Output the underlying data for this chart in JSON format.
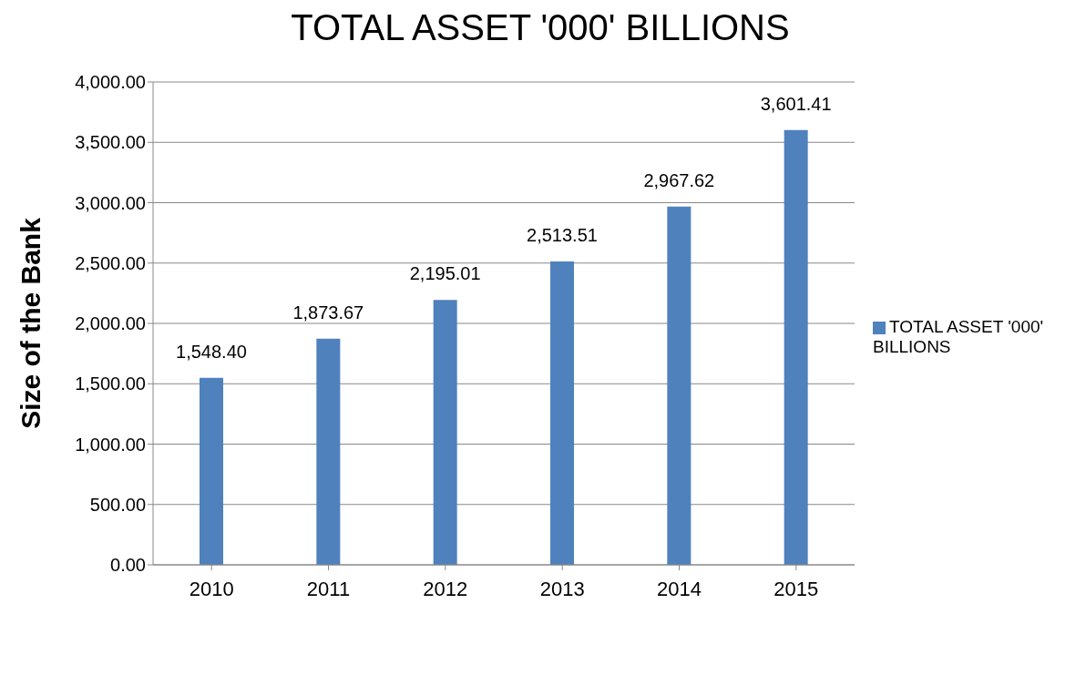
{
  "chart_data": {
    "type": "bar",
    "title": "TOTAL ASSET '000' BILLIONS",
    "ylabel": "Size of the Bank",
    "categories": [
      "2010",
      "2011",
      "2012",
      "2013",
      "2014",
      "2015"
    ],
    "series": [
      {
        "name": "TOTAL ASSET '000' BILLIONS",
        "color": "#4f81bd",
        "values": [
          1548.4,
          1873.67,
          2195.01,
          2513.51,
          2967.62,
          3601.41
        ],
        "value_labels": [
          "1,548.40",
          "1,873.67",
          "2,195.01",
          "2,513.51",
          "2,967.62",
          "3,601.41"
        ]
      }
    ],
    "ylim": [
      0,
      4000
    ],
    "yticks": [
      {
        "value": 0,
        "label": "0.00"
      },
      {
        "value": 500,
        "label": "500.00"
      },
      {
        "value": 1000,
        "label": "1,000.00"
      },
      {
        "value": 1500,
        "label": "1,500.00"
      },
      {
        "value": 2000,
        "label": "2,000.00"
      },
      {
        "value": 2500,
        "label": "2,500.00"
      },
      {
        "value": 3000,
        "label": "3,000.00"
      },
      {
        "value": 3500,
        "label": "3,500.00"
      },
      {
        "value": 4000,
        "label": "4,000.00"
      }
    ],
    "grid": "y",
    "legend": "right"
  }
}
